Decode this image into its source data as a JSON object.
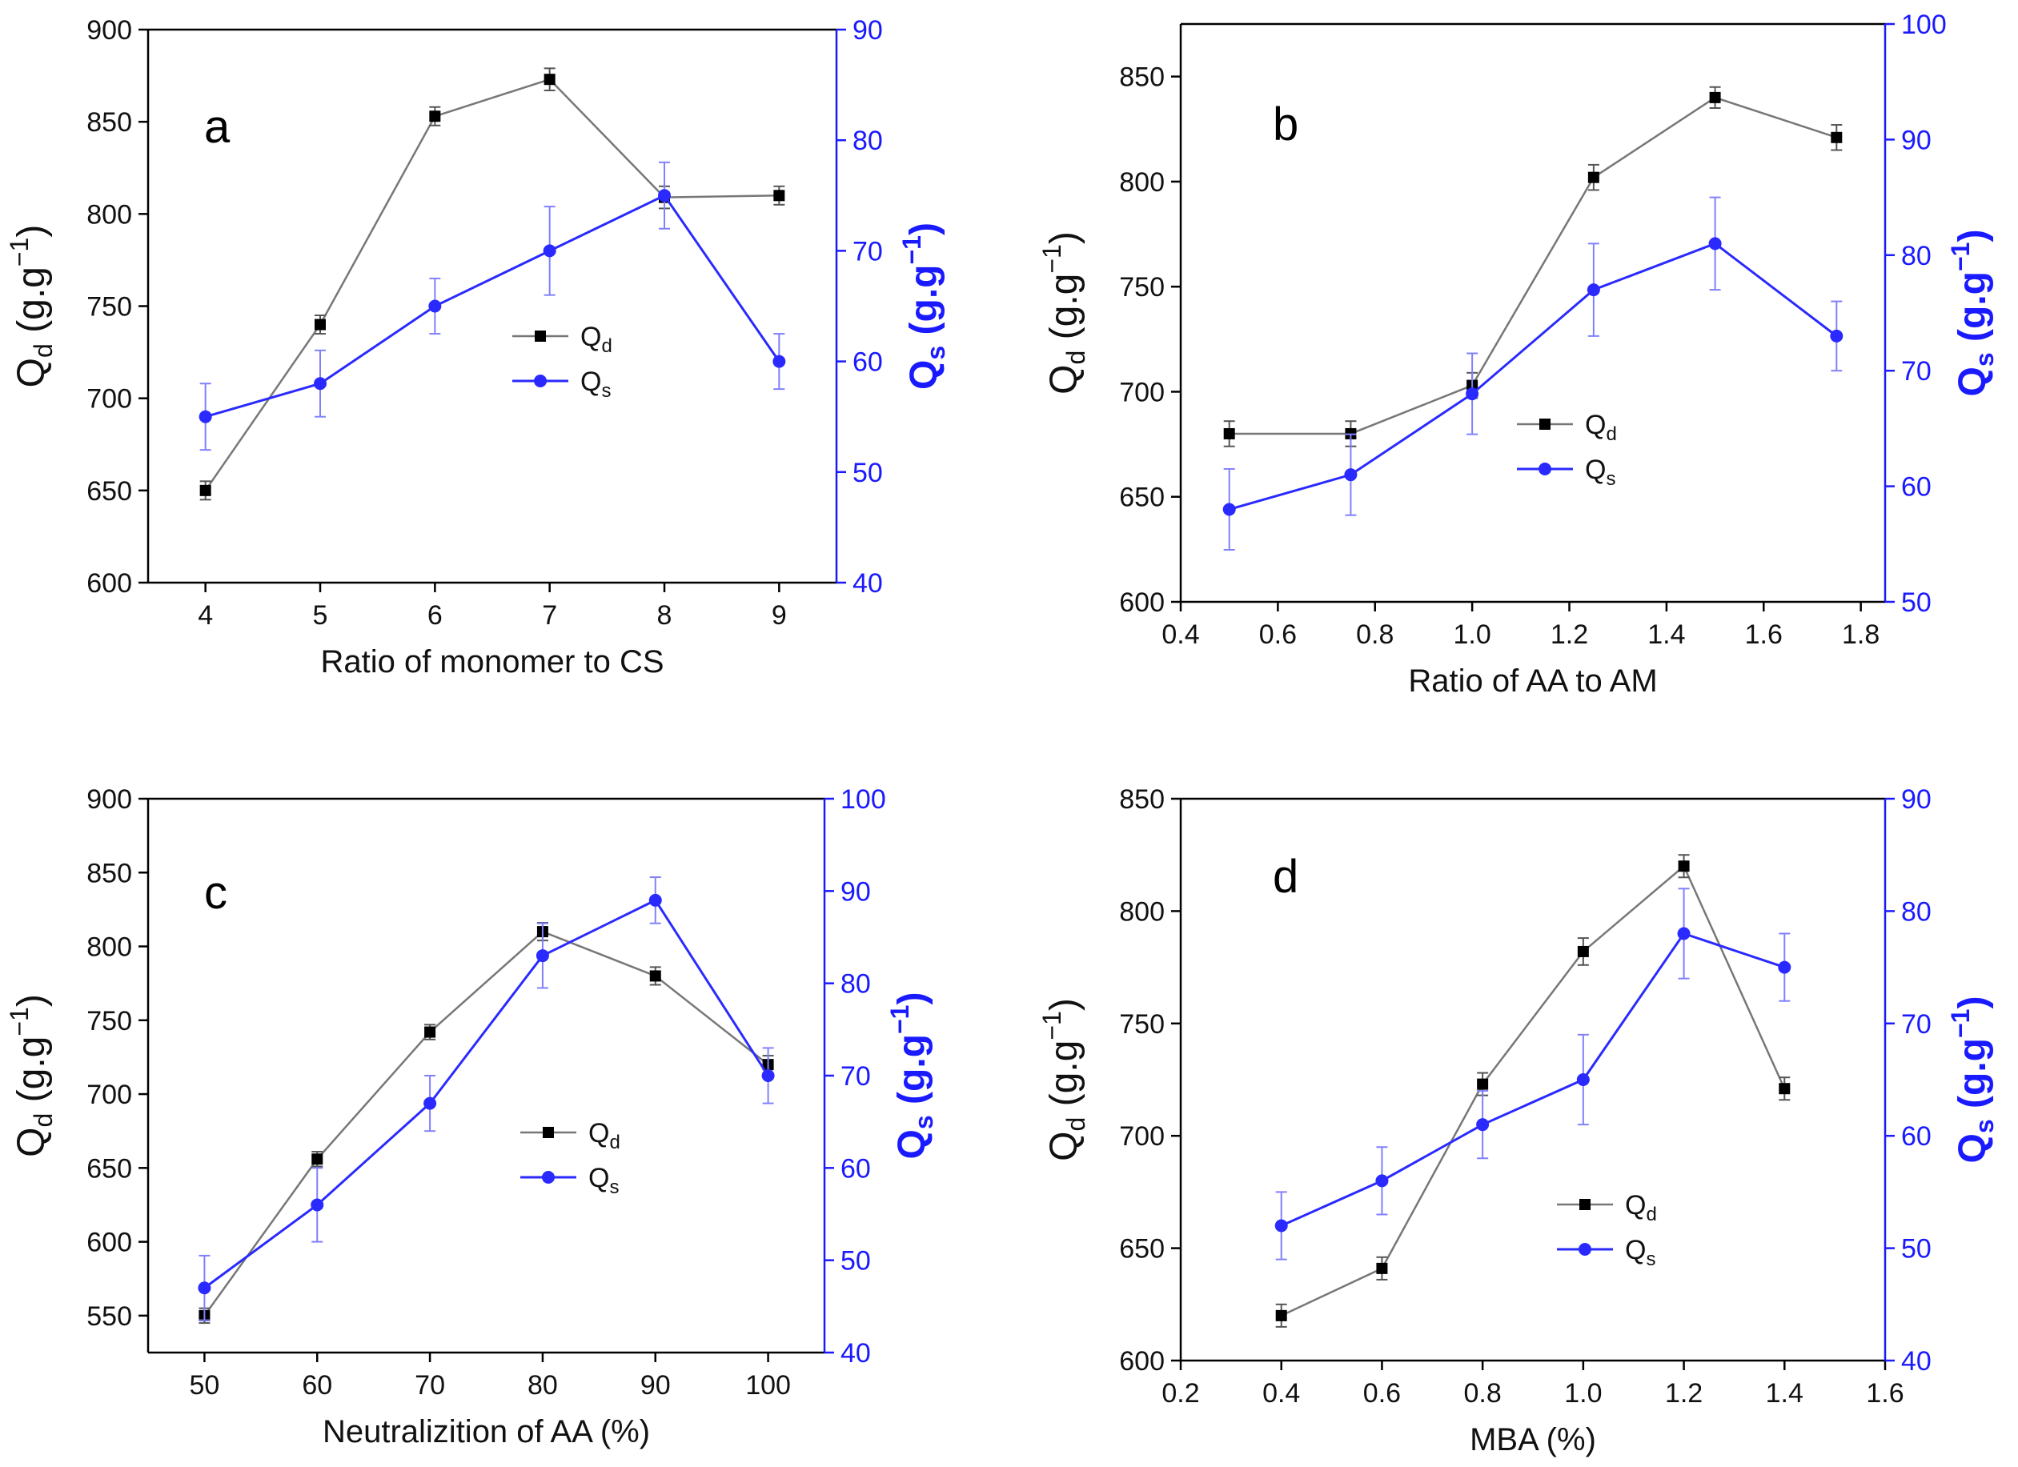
{
  "legend": {
    "qd_label": "Q",
    "qd_sub": "d",
    "qs_label": "Q",
    "qs_sub": "s"
  },
  "colors": {
    "qd": "#000000",
    "qs": "#2a2aff"
  },
  "chart_data": [
    {
      "type": "line",
      "panel": "a",
      "xlabel": "Ratio of monomer to CS",
      "ylabel": "Qd (g.g-1)",
      "y2label": "Qs (g.g-1)",
      "xlim": [
        3.5,
        9.5
      ],
      "ylim": [
        600,
        900
      ],
      "y2lim": [
        40,
        90
      ],
      "xticks": [
        4,
        5,
        6,
        7,
        8,
        9
      ],
      "xtick_labels": [
        "4",
        "5",
        "6",
        "7",
        "8",
        "9"
      ],
      "yticks": [
        600,
        650,
        700,
        750,
        800,
        850,
        900
      ],
      "y2ticks": [
        40,
        50,
        60,
        70,
        80,
        90
      ],
      "series": [
        {
          "name": "Qd",
          "axis": "left",
          "x": [
            4,
            5,
            6,
            7,
            8,
            9
          ],
          "values": [
            650,
            740,
            853,
            873,
            809,
            810
          ],
          "errors": [
            5,
            5,
            5,
            6,
            6,
            5
          ]
        },
        {
          "name": "Qs",
          "axis": "right",
          "x": [
            4,
            5,
            6,
            7,
            8,
            9
          ],
          "values": [
            55,
            58,
            65,
            70,
            75,
            60
          ],
          "errors": [
            3,
            3,
            2.5,
            4,
            3,
            2.5
          ]
        }
      ]
    },
    {
      "type": "line",
      "panel": "b",
      "xlabel": "Ratio of AA to AM",
      "ylabel": "Qd (g.g-1)",
      "y2label": "Qs (g.g-1)",
      "xlim": [
        0.4,
        1.85
      ],
      "ylim": [
        600,
        875
      ],
      "y2lim": [
        50,
        100
      ],
      "xticks": [
        0.4,
        0.6,
        0.8,
        1.0,
        1.2,
        1.4,
        1.6,
        1.8
      ],
      "xtick_labels": [
        "0.4",
        "0.6",
        "0.8",
        "1.0",
        "1.2",
        "1.4",
        "1.6",
        "1.8"
      ],
      "yticks": [
        600,
        650,
        700,
        750,
        800,
        850
      ],
      "y2ticks": [
        50,
        60,
        70,
        80,
        90,
        100
      ],
      "series": [
        {
          "name": "Qd",
          "axis": "left",
          "x": [
            0.5,
            0.75,
            1.0,
            1.25,
            1.5,
            1.75
          ],
          "values": [
            680,
            680,
            703,
            802,
            840,
            821
          ],
          "errors": [
            6,
            6,
            6,
            6,
            5,
            6
          ]
        },
        {
          "name": "Qs",
          "axis": "right",
          "x": [
            0.5,
            0.75,
            1.0,
            1.25,
            1.5,
            1.75
          ],
          "values": [
            58,
            61,
            68,
            77,
            81,
            73
          ],
          "errors": [
            3.5,
            3.5,
            3.5,
            4,
            4,
            3
          ]
        }
      ]
    },
    {
      "type": "line",
      "panel": "c",
      "xlabel": "Neutralizition of AA (%)",
      "ylabel": "Qd (g.g-1)",
      "y2label": "Qs (g.g-1)",
      "xlim": [
        45,
        105
      ],
      "ylim": [
        525,
        900
      ],
      "y2lim": [
        40,
        100
      ],
      "xticks": [
        50,
        60,
        70,
        80,
        90,
        100
      ],
      "xtick_labels": [
        "50",
        "60",
        "70",
        "80",
        "90",
        "100"
      ],
      "yticks": [
        550,
        600,
        650,
        700,
        750,
        800,
        850,
        900
      ],
      "y2ticks": [
        40,
        50,
        60,
        70,
        80,
        90,
        100
      ],
      "series": [
        {
          "name": "Qd",
          "axis": "left",
          "x": [
            50,
            60,
            70,
            80,
            90,
            100
          ],
          "values": [
            550,
            656,
            742,
            810,
            780,
            720
          ],
          "errors": [
            5,
            5,
            5,
            6,
            6,
            6
          ]
        },
        {
          "name": "Qs",
          "axis": "right",
          "x": [
            50,
            60,
            70,
            80,
            90,
            100
          ],
          "values": [
            47,
            56,
            67,
            83,
            89,
            70
          ],
          "errors": [
            3.5,
            4,
            3,
            3.5,
            2.5,
            3
          ]
        }
      ]
    },
    {
      "type": "line",
      "panel": "d",
      "xlabel": "MBA (%)",
      "ylabel": "Qd (g.g-1)",
      "y2label": "Qs (g.g-1)",
      "xlim": [
        0.2,
        1.6
      ],
      "ylim": [
        600,
        850
      ],
      "y2lim": [
        40,
        90
      ],
      "xticks": [
        0.2,
        0.4,
        0.6,
        0.8,
        1.0,
        1.2,
        1.4,
        1.6
      ],
      "xtick_labels": [
        "0.2",
        "0.4",
        "0.6",
        "0.8",
        "1.0",
        "1.2",
        "1.4",
        "1.6"
      ],
      "yticks": [
        600,
        650,
        700,
        750,
        800,
        850
      ],
      "y2ticks": [
        40,
        50,
        60,
        70,
        80,
        90
      ],
      "series": [
        {
          "name": "Qd",
          "axis": "left",
          "x": [
            0.4,
            0.6,
            0.8,
            1.0,
            1.2,
            1.4
          ],
          "values": [
            620,
            641,
            723,
            782,
            820,
            721
          ],
          "errors": [
            5,
            5,
            5,
            6,
            5,
            5
          ]
        },
        {
          "name": "Qs",
          "axis": "right",
          "x": [
            0.4,
            0.6,
            0.8,
            1.0,
            1.2,
            1.4
          ],
          "values": [
            52,
            56,
            61,
            65,
            78,
            75
          ],
          "errors": [
            3,
            3,
            3,
            4,
            4,
            3
          ]
        }
      ]
    }
  ]
}
